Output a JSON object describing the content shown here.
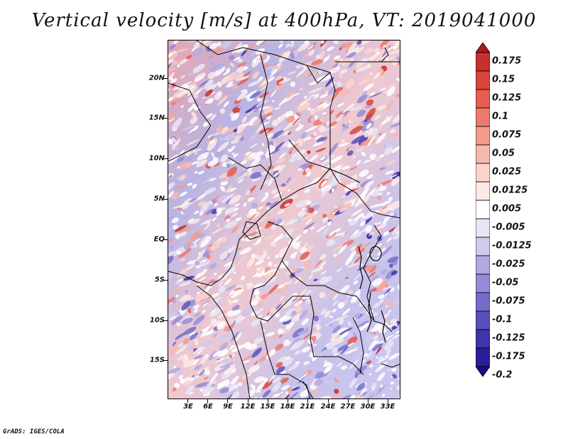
{
  "title": "Vertical velocity [m/s] at 400hPa, VT: 2019041000",
  "footer": "GrADS: IGES/COLA",
  "map": {
    "lat_labels": [
      "20N",
      "15N",
      "10N",
      "5N",
      "EQ",
      "5S",
      "10S",
      "15S"
    ],
    "lat_values": [
      20,
      15,
      10,
      5,
      0,
      -5,
      -10,
      -15
    ],
    "lon_labels": [
      "3E",
      "6E",
      "9E",
      "12E",
      "15E",
      "18E",
      "21E",
      "24E",
      "27E",
      "30E",
      "33E"
    ],
    "lon_values": [
      3,
      6,
      9,
      12,
      15,
      18,
      21,
      24,
      27,
      30,
      33
    ],
    "lat_range": [
      -19.7,
      24.7
    ],
    "lon_range": [
      0.5,
      35.2
    ]
  },
  "colorbar": {
    "labels": [
      "0.175",
      "0.15",
      "0.125",
      "0.1",
      "0.075",
      "0.05",
      "0.025",
      "0.0125",
      "0.005",
      "-0.005",
      "-0.0125",
      "-0.025",
      "-0.05",
      "-0.075",
      "-0.1",
      "-0.125",
      "-0.175",
      "-0.2"
    ],
    "colors": [
      "#b01820",
      "#c8302c",
      "#d8463c",
      "#e35d50",
      "#ec7a6c",
      "#f29a8e",
      "#f7b9ae",
      "#fad4cc",
      "#fdeae6",
      "#ffffff",
      "#e8e6f6",
      "#cfcaee",
      "#b1aae2",
      "#948bd6",
      "#766dca",
      "#5a50bc",
      "#3e34ac",
      "#2a1e98",
      "#1a0e86"
    ]
  }
}
